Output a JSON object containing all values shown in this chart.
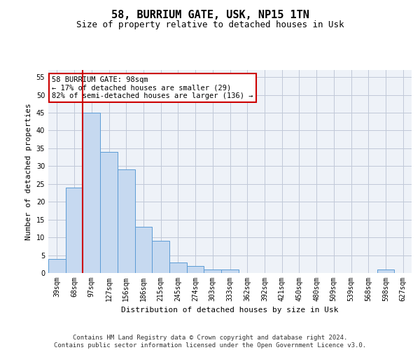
{
  "title1": "58, BURRIUM GATE, USK, NP15 1TN",
  "title2": "Size of property relative to detached houses in Usk",
  "xlabel": "Distribution of detached houses by size in Usk",
  "ylabel": "Number of detached properties",
  "categories": [
    "39sqm",
    "68sqm",
    "97sqm",
    "127sqm",
    "156sqm",
    "186sqm",
    "215sqm",
    "245sqm",
    "274sqm",
    "303sqm",
    "333sqm",
    "362sqm",
    "392sqm",
    "421sqm",
    "450sqm",
    "480sqm",
    "509sqm",
    "539sqm",
    "568sqm",
    "598sqm",
    "627sqm"
  ],
  "values": [
    4,
    24,
    45,
    34,
    29,
    13,
    9,
    3,
    2,
    1,
    1,
    0,
    0,
    0,
    0,
    0,
    0,
    0,
    0,
    1,
    0
  ],
  "bar_color": "#c6d9f0",
  "bar_edge_color": "#5b9bd5",
  "property_index": 2,
  "red_line_color": "#cc0000",
  "annotation_text": "58 BURRIUM GATE: 98sqm\n← 17% of detached houses are smaller (29)\n82% of semi-detached houses are larger (136) →",
  "annotation_box_color": "#ffffff",
  "annotation_box_edge": "#cc0000",
  "ylim": [
    0,
    57
  ],
  "yticks": [
    0,
    5,
    10,
    15,
    20,
    25,
    30,
    35,
    40,
    45,
    50,
    55
  ],
  "footer_text": "Contains HM Land Registry data © Crown copyright and database right 2024.\nContains public sector information licensed under the Open Government Licence v3.0.",
  "grid_color": "#c0c8d8",
  "bg_color": "#eef2f8",
  "title1_fontsize": 11,
  "title2_fontsize": 9,
  "xlabel_fontsize": 8,
  "ylabel_fontsize": 8,
  "tick_fontsize": 7,
  "footer_fontsize": 6.5
}
